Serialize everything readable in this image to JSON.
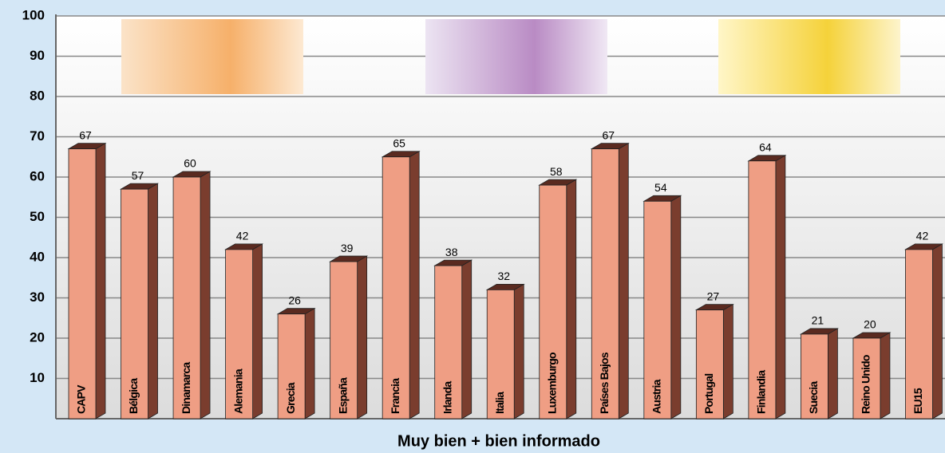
{
  "chart_data": {
    "type": "bar3d",
    "x_label": "Muy bien + bien informado",
    "categories": [
      "CAPV",
      "Bélgica",
      "Dinamarca",
      "Alemania",
      "Grecia",
      "España",
      "Francia",
      "Irlanda",
      "Italia",
      "Luxemburgo",
      "Países Bajos",
      "Austria",
      "Portugal",
      "Finlandia",
      "Suecia",
      "Reino Unido",
      "EU15"
    ],
    "values": [
      67,
      57,
      60,
      42,
      26,
      39,
      65,
      38,
      32,
      58,
      67,
      54,
      27,
      64,
      21,
      20,
      42
    ],
    "color": "#ef9e84",
    "ylim": [
      0,
      100
    ],
    "yticks": [
      10,
      20,
      30,
      40,
      50,
      60,
      70,
      80,
      90,
      100
    ],
    "grid": true
  }
}
